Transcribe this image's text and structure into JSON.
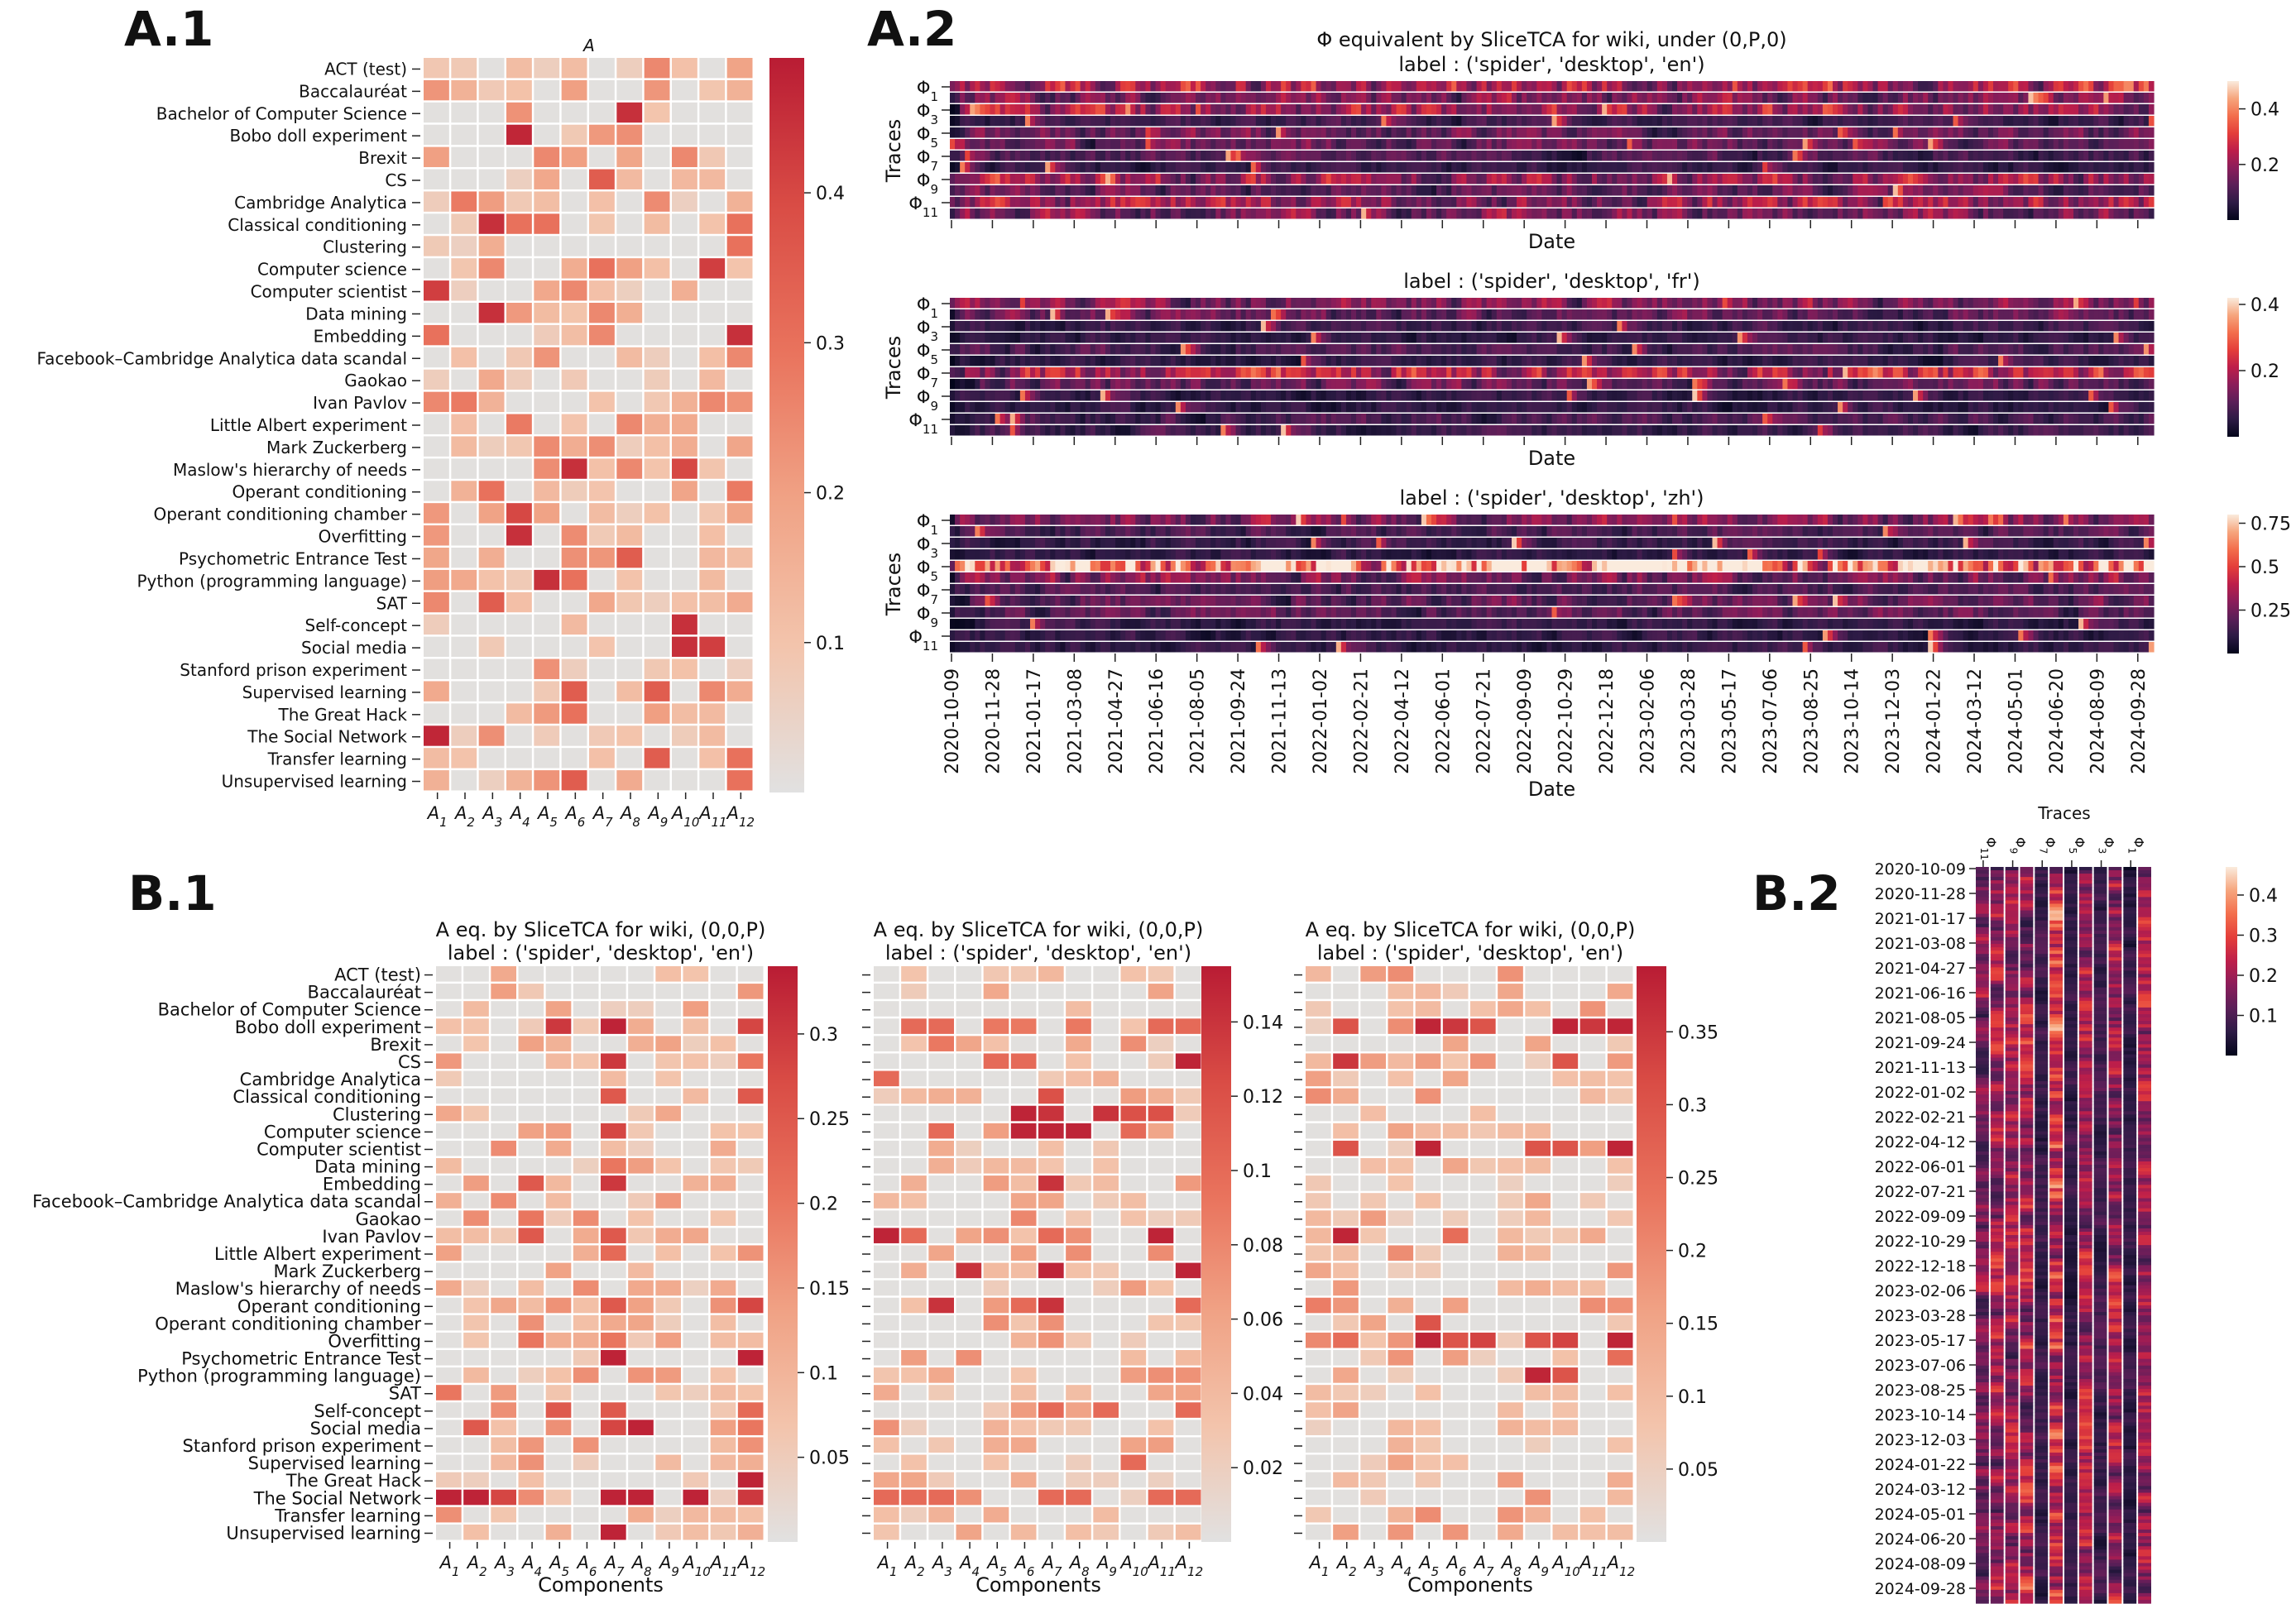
{
  "panel_labels": {
    "a1": "A.1",
    "a2": "A.2",
    "b1": "B.1",
    "b2": "B.2"
  },
  "colormaps": {
    "rocket_r": [
      "#e1e1e1",
      "#f3c4ac",
      "#f0a285",
      "#e9735d",
      "#d94c45",
      "#b91c34"
    ],
    "rocket": [
      "#03051a",
      "#2d1b45",
      "#5a1f58",
      "#8b1d5a",
      "#bd1e4a",
      "#e43e3a",
      "#f36e4c",
      "#f6a57d",
      "#faebdd"
    ]
  },
  "chart_data": [
    {
      "id": "A1",
      "type": "heatmap",
      "title": "A",
      "rows": [
        "ACT (test)",
        "Baccalauréat",
        "Bachelor of Computer Science",
        "Bobo doll experiment",
        "Brexit",
        "CS",
        "Cambridge Analytica",
        "Classical conditioning",
        "Clustering",
        "Computer science",
        "Computer scientist",
        "Data mining",
        "Embedding",
        "Facebook–Cambridge Analytica data scandal",
        "Gaokao",
        "Ivan Pavlov",
        "Little Albert experiment",
        "Mark Zuckerberg",
        "Maslow's hierarchy of needs",
        "Operant conditioning",
        "Operant conditioning chamber",
        "Overfitting",
        "Psychometric Entrance Test",
        "Python (programming language)",
        "SAT",
        "Self-concept",
        "Social media",
        "Stanford prison experiment",
        "Supervised learning",
        "The Great Hack",
        "The Social Network",
        "Transfer learning",
        "Unsupervised learning"
      ],
      "columns": [
        "A1",
        "A2",
        "A3",
        "A4",
        "A5",
        "A6",
        "A7",
        "A8",
        "A9",
        "A10",
        "A11",
        "A12"
      ],
      "colorbar": {
        "min": 0,
        "max": 0.49,
        "ticks": [
          0.1,
          0.2,
          0.3,
          0.4
        ]
      },
      "highlights": [
        [
          0,
          8,
          0.25
        ],
        [
          1,
          1,
          0.15
        ],
        [
          1,
          5,
          0.2
        ],
        [
          1,
          8,
          0.22
        ],
        [
          1,
          11,
          0.15
        ],
        [
          2,
          7,
          0.45
        ],
        [
          3,
          3,
          0.47
        ],
        [
          4,
          0,
          0.2
        ],
        [
          4,
          4,
          0.25
        ],
        [
          4,
          5,
          0.2
        ],
        [
          4,
          9,
          0.25
        ],
        [
          5,
          6,
          0.35
        ],
        [
          6,
          1,
          0.28
        ],
        [
          6,
          11,
          0.15
        ],
        [
          7,
          2,
          0.45
        ],
        [
          7,
          3,
          0.3
        ],
        [
          7,
          4,
          0.3
        ],
        [
          7,
          11,
          0.3
        ],
        [
          8,
          11,
          0.3
        ],
        [
          9,
          2,
          0.25
        ],
        [
          9,
          6,
          0.3
        ],
        [
          9,
          10,
          0.42
        ],
        [
          10,
          0,
          0.42
        ],
        [
          10,
          5,
          0.25
        ],
        [
          11,
          2,
          0.45
        ],
        [
          11,
          6,
          0.25
        ],
        [
          12,
          0,
          0.3
        ],
        [
          12,
          6,
          0.25
        ],
        [
          12,
          11,
          0.45
        ],
        [
          13,
          11,
          0.25
        ],
        [
          15,
          0,
          0.25
        ],
        [
          15,
          1,
          0.28
        ],
        [
          15,
          10,
          0.25
        ],
        [
          16,
          3,
          0.28
        ],
        [
          16,
          7,
          0.25
        ],
        [
          18,
          5,
          0.45
        ],
        [
          18,
          9,
          0.4
        ],
        [
          18,
          7,
          0.25
        ],
        [
          19,
          2,
          0.3
        ],
        [
          19,
          11,
          0.28
        ],
        [
          20,
          3,
          0.4
        ],
        [
          21,
          3,
          0.45
        ],
        [
          22,
          7,
          0.35
        ],
        [
          23,
          4,
          0.45
        ],
        [
          23,
          5,
          0.3
        ],
        [
          24,
          0,
          0.25
        ],
        [
          24,
          2,
          0.35
        ],
        [
          25,
          9,
          0.45
        ],
        [
          26,
          9,
          0.45
        ],
        [
          26,
          10,
          0.42
        ],
        [
          28,
          5,
          0.35
        ],
        [
          28,
          8,
          0.35
        ],
        [
          28,
          10,
          0.25
        ],
        [
          29,
          5,
          0.3
        ],
        [
          30,
          0,
          0.47
        ],
        [
          31,
          8,
          0.35
        ],
        [
          31,
          11,
          0.3
        ],
        [
          32,
          5,
          0.35
        ],
        [
          32,
          11,
          0.3
        ]
      ]
    },
    {
      "id": "A2-en",
      "type": "heatmap",
      "title": "Φ equivalent by SliceTCA for wiki, under (0,P,0)",
      "subtitle": "label : ('spider', 'desktop', 'en')",
      "ylabel": "Traces",
      "xlabel": "Date",
      "row_ticks": [
        "Φ1",
        "Φ3",
        "Φ5",
        "Φ7",
        "Φ9",
        "Φ11"
      ],
      "colorbar": {
        "min": 0,
        "max": 0.5,
        "ticks": [
          0.2,
          0.4
        ]
      }
    },
    {
      "id": "A2-fr",
      "type": "heatmap",
      "subtitle": "label : ('spider', 'desktop', 'fr')",
      "ylabel": "Traces",
      "xlabel": "Date",
      "row_ticks": [
        "Φ1",
        "Φ3",
        "Φ5",
        "Φ7",
        "Φ9",
        "Φ11"
      ],
      "colorbar": {
        "min": 0,
        "max": 0.42,
        "ticks": [
          0.2,
          0.4
        ]
      }
    },
    {
      "id": "A2-zh",
      "type": "heatmap",
      "subtitle": "label : ('spider', 'desktop', 'zh')",
      "ylabel": "Traces",
      "xlabel": "Date",
      "row_ticks": [
        "Φ1",
        "Φ3",
        "Φ5",
        "Φ7",
        "Φ9",
        "Φ11"
      ],
      "colorbar": {
        "min": 0,
        "max": 0.8,
        "ticks": [
          0.25,
          0.5,
          0.75
        ]
      },
      "date_ticks": [
        "2020-10-09",
        "2020-11-28",
        "2021-01-17",
        "2021-03-08",
        "2021-04-27",
        "2021-06-16",
        "2021-08-05",
        "2021-09-24",
        "2021-11-13",
        "2022-01-02",
        "2022-02-21",
        "2022-04-12",
        "2022-06-01",
        "2022-07-21",
        "2022-09-09",
        "2022-10-29",
        "2022-12-18",
        "2023-02-06",
        "2023-03-28",
        "2023-05-17",
        "2023-07-06",
        "2023-08-25",
        "2023-10-14",
        "2023-12-03",
        "2024-01-22",
        "2024-03-12",
        "2024-05-01",
        "2024-06-20",
        "2024-08-09",
        "2024-09-28"
      ]
    },
    {
      "id": "B1-1",
      "type": "heatmap",
      "title": "A eq. by SliceTCA for wiki, (0,0,P)",
      "subtitle": "label : ('spider', 'desktop', 'en')",
      "xlabel": "Components",
      "colorbar": {
        "min": 0,
        "max": 0.34,
        "ticks": [
          0.05,
          0.1,
          0.15,
          0.2,
          0.25,
          0.3
        ]
      },
      "highlights": [
        [
          3,
          4,
          0.3
        ],
        [
          3,
          11,
          0.28
        ],
        [
          3,
          6,
          0.33
        ],
        [
          5,
          6,
          0.3
        ],
        [
          5,
          11,
          0.2
        ],
        [
          7,
          6,
          0.25
        ],
        [
          7,
          11,
          0.25
        ],
        [
          9,
          6,
          0.28
        ],
        [
          11,
          6,
          0.2
        ],
        [
          12,
          3,
          0.25
        ],
        [
          12,
          6,
          0.3
        ],
        [
          14,
          3,
          0.2
        ],
        [
          15,
          3,
          0.25
        ],
        [
          15,
          6,
          0.25
        ],
        [
          16,
          6,
          0.22
        ],
        [
          19,
          6,
          0.25
        ],
        [
          19,
          11,
          0.28
        ],
        [
          21,
          3,
          0.2
        ],
        [
          21,
          6,
          0.2
        ],
        [
          22,
          6,
          0.33
        ],
        [
          22,
          11,
          0.33
        ],
        [
          24,
          0,
          0.2
        ],
        [
          25,
          4,
          0.25
        ],
        [
          25,
          6,
          0.25
        ],
        [
          25,
          11,
          0.22
        ],
        [
          26,
          1,
          0.25
        ],
        [
          26,
          6,
          0.28
        ],
        [
          26,
          7,
          0.33
        ],
        [
          26,
          11,
          0.2
        ],
        [
          29,
          11,
          0.33
        ],
        [
          30,
          0,
          0.33
        ],
        [
          30,
          1,
          0.33
        ],
        [
          30,
          2,
          0.28
        ],
        [
          30,
          6,
          0.33
        ],
        [
          30,
          7,
          0.33
        ],
        [
          30,
          9,
          0.33
        ],
        [
          30,
          11,
          0.3
        ],
        [
          32,
          6,
          0.33
        ]
      ]
    },
    {
      "id": "B1-2",
      "type": "heatmap",
      "title": "A eq. by SliceTCA for wiki, (0,0,P)",
      "subtitle": "label : ('spider', 'desktop', 'en')",
      "xlabel": "Components",
      "colorbar": {
        "min": 0,
        "max": 0.155,
        "ticks": [
          0.02,
          0.04,
          0.06,
          0.08,
          0.1,
          0.12,
          0.14
        ]
      },
      "highlights": [
        [
          3,
          1,
          0.1
        ],
        [
          3,
          2,
          0.1
        ],
        [
          3,
          4,
          0.09
        ],
        [
          3,
          5,
          0.09
        ],
        [
          3,
          7,
          0.09
        ],
        [
          3,
          10,
          0.1
        ],
        [
          3,
          11,
          0.1
        ],
        [
          4,
          2,
          0.09
        ],
        [
          5,
          4,
          0.1
        ],
        [
          5,
          5,
          0.1
        ],
        [
          5,
          11,
          0.15
        ],
        [
          6,
          0,
          0.1
        ],
        [
          7,
          6,
          0.12
        ],
        [
          8,
          5,
          0.15
        ],
        [
          8,
          6,
          0.14
        ],
        [
          8,
          8,
          0.14
        ],
        [
          8,
          9,
          0.12
        ],
        [
          8,
          10,
          0.12
        ],
        [
          9,
          5,
          0.15
        ],
        [
          9,
          6,
          0.15
        ],
        [
          9,
          7,
          0.15
        ],
        [
          9,
          2,
          0.1
        ],
        [
          9,
          9,
          0.1
        ],
        [
          12,
          6,
          0.14
        ],
        [
          14,
          5,
          0.08
        ],
        [
          15,
          0,
          0.15
        ],
        [
          15,
          1,
          0.1
        ],
        [
          15,
          6,
          0.1
        ],
        [
          15,
          10,
          0.15
        ],
        [
          17,
          3,
          0.14
        ],
        [
          17,
          6,
          0.15
        ],
        [
          17,
          11,
          0.15
        ],
        [
          19,
          2,
          0.14
        ],
        [
          19,
          6,
          0.14
        ],
        [
          19,
          5,
          0.1
        ],
        [
          19,
          11,
          0.1
        ],
        [
          25,
          6,
          0.1
        ],
        [
          25,
          8,
          0.1
        ],
        [
          25,
          11,
          0.1
        ],
        [
          28,
          9,
          0.1
        ],
        [
          30,
          0,
          0.1
        ],
        [
          30,
          1,
          0.1
        ],
        [
          30,
          2,
          0.1
        ],
        [
          30,
          6,
          0.1
        ],
        [
          30,
          7,
          0.1
        ],
        [
          30,
          10,
          0.1
        ],
        [
          30,
          11,
          0.1
        ]
      ]
    },
    {
      "id": "B1-3",
      "type": "heatmap",
      "title": "A eq. by SliceTCA for wiki, (0,0,P)",
      "subtitle": "label : ('spider', 'desktop', 'en')",
      "xlabel": "Components",
      "colorbar": {
        "min": 0,
        "max": 0.395,
        "ticks": [
          0.05,
          0.1,
          0.15,
          0.2,
          0.25,
          0.3,
          0.35
        ]
      },
      "highlights": [
        [
          3,
          1,
          0.3
        ],
        [
          3,
          4,
          0.38
        ],
        [
          3,
          5,
          0.35
        ],
        [
          3,
          6,
          0.3
        ],
        [
          3,
          9,
          0.38
        ],
        [
          3,
          10,
          0.35
        ],
        [
          3,
          11,
          0.38
        ],
        [
          5,
          1,
          0.35
        ],
        [
          5,
          9,
          0.3
        ],
        [
          10,
          1,
          0.3
        ],
        [
          10,
          4,
          0.38
        ],
        [
          10,
          8,
          0.3
        ],
        [
          10,
          9,
          0.3
        ],
        [
          10,
          11,
          0.38
        ],
        [
          15,
          1,
          0.38
        ],
        [
          15,
          5,
          0.25
        ],
        [
          19,
          0,
          0.22
        ],
        [
          20,
          4,
          0.3
        ],
        [
          21,
          0,
          0.2
        ],
        [
          21,
          1,
          0.25
        ],
        [
          21,
          4,
          0.38
        ],
        [
          21,
          5,
          0.3
        ],
        [
          21,
          6,
          0.33
        ],
        [
          21,
          8,
          0.3
        ],
        [
          21,
          9,
          0.33
        ],
        [
          21,
          11,
          0.38
        ],
        [
          22,
          11,
          0.25
        ],
        [
          23,
          8,
          0.38
        ],
        [
          23,
          9,
          0.3
        ]
      ]
    },
    {
      "id": "B2",
      "type": "heatmap",
      "title": "Traces",
      "col_ticks": [
        "Φ11",
        "Φ9",
        "Φ7",
        "Φ5",
        "Φ3",
        "Φ1"
      ],
      "colorbar": {
        "min": 0,
        "max": 0.47,
        "ticks": [
          0.1,
          0.2,
          0.3,
          0.4
        ]
      },
      "date_ticks": [
        "2020-10-09",
        "2020-11-28",
        "2021-01-17",
        "2021-03-08",
        "2021-04-27",
        "2021-06-16",
        "2021-08-05",
        "2021-09-24",
        "2021-11-13",
        "2022-01-02",
        "2022-02-21",
        "2022-04-12",
        "2022-06-01",
        "2022-07-21",
        "2022-09-09",
        "2022-10-29",
        "2022-12-18",
        "2023-02-06",
        "2023-03-28",
        "2023-05-17",
        "2023-07-06",
        "2023-08-25",
        "2023-10-14",
        "2023-12-03",
        "2024-01-22",
        "2024-03-12",
        "2024-05-01",
        "2024-06-20",
        "2024-08-09",
        "2024-09-28"
      ]
    }
  ]
}
